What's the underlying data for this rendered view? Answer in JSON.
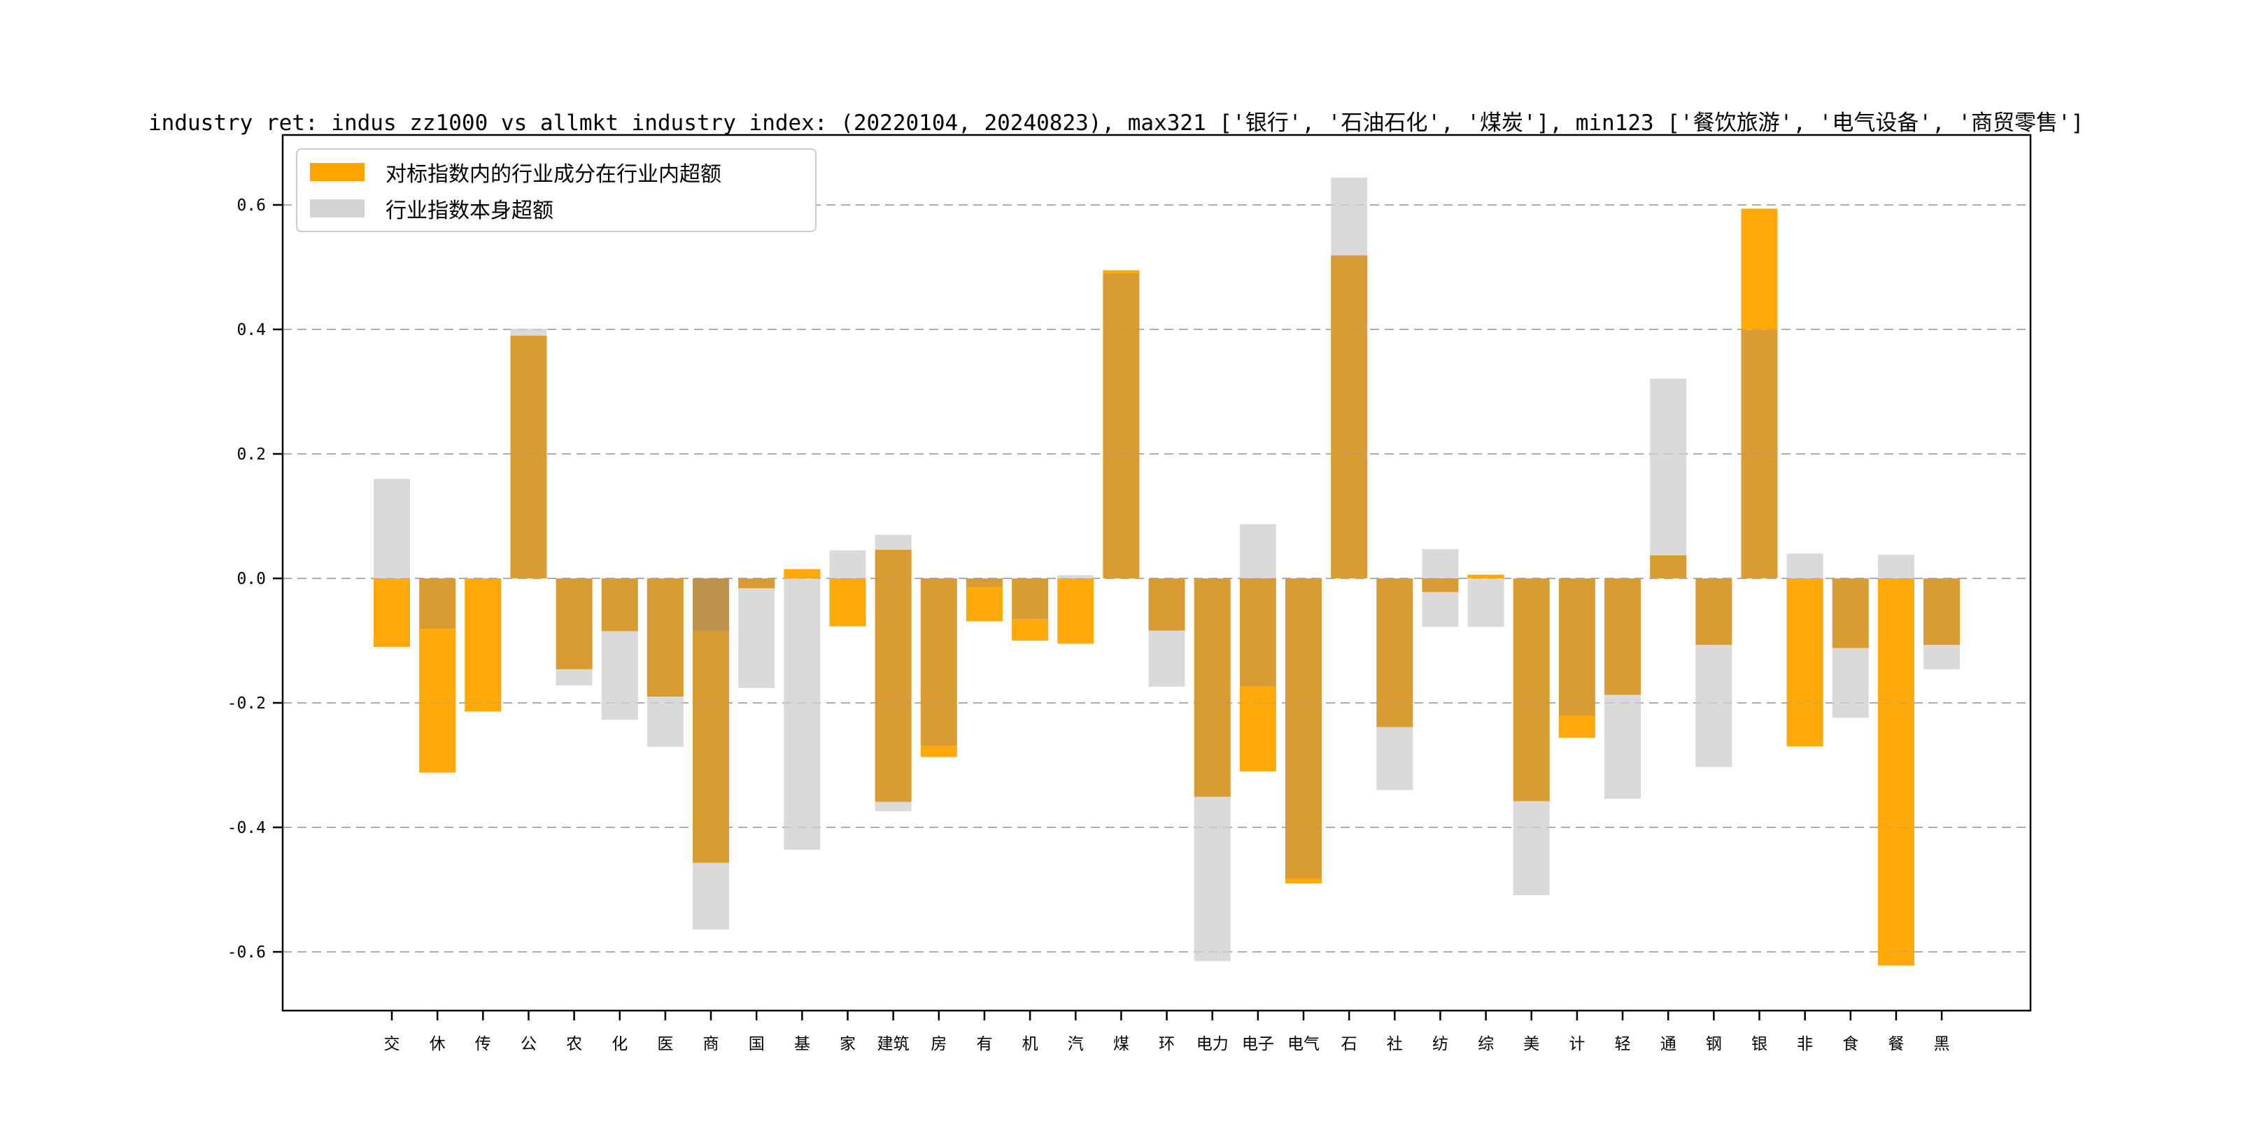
{
  "title": "industry ret: indus_zz1000 vs allmkt_industry_index: (20220104, 20240823), max321 ['银行', '石油石化', '煤炭'], min123 ['餐饮旅游', '电气设备', '商贸零售']",
  "legend": {
    "entries": [
      {
        "label": "对标指数内的行业成分在行业内超额",
        "color": "#FFA500"
      },
      {
        "label": "行业指数本身超额",
        "color": "#D3D3D3"
      }
    ]
  },
  "chart_data": {
    "type": "bar",
    "title": "industry ret: indus_zz1000 vs allmkt_industry_index: (20220104, 20240823), max321 ['银行', '石油石化', '煤炭'], min123 ['餐饮旅游', '电气设备', '商贸零售']",
    "xlabel": "",
    "ylabel": "",
    "ylim": [
      -0.694,
      0.712
    ],
    "yticks": [
      0.6,
      0.4,
      0.2,
      0.0,
      -0.2,
      -0.4,
      -0.6
    ],
    "ytick_labels": [
      "0.6",
      "0.4",
      "0.2",
      "0.0",
      "-0.2",
      "-0.4",
      "-0.6"
    ],
    "grid": "horizontal dashed at every 0.2, visible through translucent bars",
    "legend_position": "upper left",
    "colors": {
      "bright": "#FFA500",
      "gold": "#D6982B",
      "brown": "#BB8E43",
      "gray": "#D8D8D8"
    },
    "color_meaning": {
      "bright": "对标指数内的行业成分在行业内超额 (orange series alone)",
      "gold": "orange series overlapping gray series",
      "brown": "darker overlap band",
      "gray": "行业指数本身超额 (gray series alone)"
    },
    "categories": [
      "交",
      "休",
      "传",
      "公",
      "农",
      "化",
      "医",
      "商",
      "国",
      "基",
      "家",
      "建筑",
      "房",
      "有",
      "机",
      "汽",
      "煤",
      "环",
      "电力",
      "电子",
      "电气",
      "石",
      "社",
      "纺",
      "综",
      "美",
      "计",
      "轻",
      "通",
      "钢",
      "银",
      "非",
      "食",
      "餐",
      "黑"
    ],
    "bars": [
      {
        "category": "交",
        "segments": [
          {
            "color": "gray",
            "from": 0.16,
            "to": 0
          },
          {
            "color": "bright",
            "from": 0,
            "to": -0.11
          }
        ]
      },
      {
        "category": "休",
        "segments": [
          {
            "color": "gold",
            "from": 0,
            "to": -0.081
          },
          {
            "color": "bright",
            "from": -0.081,
            "to": -0.312
          }
        ]
      },
      {
        "category": "传",
        "segments": [
          {
            "color": "bright",
            "from": 0,
            "to": -0.214
          }
        ]
      },
      {
        "category": "公",
        "segments": [
          {
            "color": "gray",
            "from": 0.401,
            "to": 0.39
          },
          {
            "color": "gold",
            "from": 0.39,
            "to": 0
          }
        ]
      },
      {
        "category": "农",
        "segments": [
          {
            "color": "gold",
            "from": 0,
            "to": -0.146
          },
          {
            "color": "gray",
            "from": -0.146,
            "to": -0.172
          }
        ]
      },
      {
        "category": "化",
        "segments": [
          {
            "color": "gold",
            "from": 0,
            "to": -0.085
          },
          {
            "color": "gray",
            "from": -0.085,
            "to": -0.227
          }
        ]
      },
      {
        "category": "医",
        "segments": [
          {
            "color": "gold",
            "from": 0,
            "to": -0.19
          },
          {
            "color": "gray",
            "from": -0.19,
            "to": -0.271
          }
        ]
      },
      {
        "category": "商",
        "segments": [
          {
            "color": "brown",
            "from": 0,
            "to": -0.085
          },
          {
            "color": "gold",
            "from": -0.085,
            "to": -0.457
          },
          {
            "color": "gray",
            "from": -0.457,
            "to": -0.564
          }
        ]
      },
      {
        "category": "国",
        "segments": [
          {
            "color": "gold",
            "from": 0,
            "to": -0.016
          },
          {
            "color": "gray",
            "from": -0.016,
            "to": -0.176
          }
        ]
      },
      {
        "category": "基",
        "segments": [
          {
            "color": "bright",
            "from": 0.015,
            "to": 0
          },
          {
            "color": "gray",
            "from": 0,
            "to": -0.436
          }
        ]
      },
      {
        "category": "家",
        "segments": [
          {
            "color": "gray",
            "from": 0.045,
            "to": 0
          },
          {
            "color": "bright",
            "from": 0,
            "to": -0.077
          }
        ]
      },
      {
        "category": "建筑",
        "segments": [
          {
            "color": "gray",
            "from": 0.07,
            "to": 0.046
          },
          {
            "color": "gold",
            "from": 0.046,
            "to": -0.359
          },
          {
            "color": "gray",
            "from": -0.359,
            "to": -0.374
          }
        ]
      },
      {
        "category": "房",
        "segments": [
          {
            "color": "gold",
            "from": 0,
            "to": -0.269
          },
          {
            "color": "bright",
            "from": -0.269,
            "to": -0.287
          }
        ]
      },
      {
        "category": "有",
        "segments": [
          {
            "color": "gold",
            "from": 0,
            "to": -0.014
          },
          {
            "color": "bright",
            "from": -0.014,
            "to": -0.069
          }
        ]
      },
      {
        "category": "机",
        "segments": [
          {
            "color": "gold",
            "from": 0,
            "to": -0.066
          },
          {
            "color": "bright",
            "from": -0.066,
            "to": -0.1
          }
        ]
      },
      {
        "category": "汽",
        "segments": [
          {
            "color": "gray",
            "from": 0.005,
            "to": 0
          },
          {
            "color": "bright",
            "from": 0,
            "to": -0.105
          }
        ]
      },
      {
        "category": "煤",
        "segments": [
          {
            "color": "bright",
            "from": 0.495,
            "to": 0.49
          },
          {
            "color": "gold",
            "from": 0.49,
            "to": 0
          }
        ]
      },
      {
        "category": "环",
        "segments": [
          {
            "color": "gold",
            "from": 0,
            "to": -0.084
          },
          {
            "color": "gray",
            "from": -0.084,
            "to": -0.174
          }
        ]
      },
      {
        "category": "电力",
        "segments": [
          {
            "color": "gold",
            "from": 0,
            "to": -0.351
          },
          {
            "color": "gray",
            "from": -0.351,
            "to": -0.615
          }
        ]
      },
      {
        "category": "电子",
        "segments": [
          {
            "color": "gray",
            "from": 0.087,
            "to": 0
          },
          {
            "color": "gold",
            "from": 0,
            "to": -0.174
          },
          {
            "color": "bright",
            "from": -0.174,
            "to": -0.31
          }
        ]
      },
      {
        "category": "电气",
        "segments": [
          {
            "color": "gold",
            "from": 0,
            "to": -0.482
          },
          {
            "color": "bright",
            "from": -0.482,
            "to": -0.49
          }
        ]
      },
      {
        "category": "石",
        "segments": [
          {
            "color": "gray",
            "from": 0.644,
            "to": 0.519
          },
          {
            "color": "gold",
            "from": 0.519,
            "to": 0
          }
        ]
      },
      {
        "category": "社",
        "segments": [
          {
            "color": "gold",
            "from": 0,
            "to": -0.239
          },
          {
            "color": "gray",
            "from": -0.239,
            "to": -0.34
          }
        ]
      },
      {
        "category": "纺",
        "segments": [
          {
            "color": "gray",
            "from": 0.047,
            "to": 0
          },
          {
            "color": "gold",
            "from": 0,
            "to": -0.022
          },
          {
            "color": "gray",
            "from": -0.022,
            "to": -0.078
          }
        ]
      },
      {
        "category": "综",
        "segments": [
          {
            "color": "bright",
            "from": 0.006,
            "to": 0
          },
          {
            "color": "gray",
            "from": 0,
            "to": -0.078
          }
        ]
      },
      {
        "category": "美",
        "segments": [
          {
            "color": "gold",
            "from": 0,
            "to": -0.358
          },
          {
            "color": "gray",
            "from": -0.358,
            "to": -0.509
          }
        ]
      },
      {
        "category": "计",
        "segments": [
          {
            "color": "gold",
            "from": 0,
            "to": -0.221
          },
          {
            "color": "bright",
            "from": -0.221,
            "to": -0.256
          }
        ]
      },
      {
        "category": "轻",
        "segments": [
          {
            "color": "gold",
            "from": 0,
            "to": -0.187
          },
          {
            "color": "gray",
            "from": -0.187,
            "to": -0.354
          }
        ]
      },
      {
        "category": "通",
        "segments": [
          {
            "color": "gray",
            "from": 0.321,
            "to": 0.037
          },
          {
            "color": "gold",
            "from": 0.037,
            "to": 0
          }
        ]
      },
      {
        "category": "钢",
        "segments": [
          {
            "color": "gold",
            "from": 0,
            "to": -0.107
          },
          {
            "color": "gray",
            "from": -0.107,
            "to": -0.303
          }
        ]
      },
      {
        "category": "银",
        "segments": [
          {
            "color": "bright",
            "from": 0.594,
            "to": 0.399
          },
          {
            "color": "gold",
            "from": 0.399,
            "to": 0
          }
        ]
      },
      {
        "category": "非",
        "segments": [
          {
            "color": "gray",
            "from": 0.04,
            "to": 0
          },
          {
            "color": "bright",
            "from": 0,
            "to": -0.27
          }
        ]
      },
      {
        "category": "食",
        "segments": [
          {
            "color": "gold",
            "from": 0,
            "to": -0.112
          },
          {
            "color": "gray",
            "from": -0.112,
            "to": -0.224
          }
        ]
      },
      {
        "category": "餐",
        "segments": [
          {
            "color": "gray",
            "from": 0.038,
            "to": 0
          },
          {
            "color": "bright",
            "from": 0,
            "to": -0.622
          }
        ]
      },
      {
        "category": "黑",
        "segments": [
          {
            "color": "gold",
            "from": 0,
            "to": -0.107
          },
          {
            "color": "gray",
            "from": -0.107,
            "to": -0.146
          }
        ]
      }
    ]
  }
}
